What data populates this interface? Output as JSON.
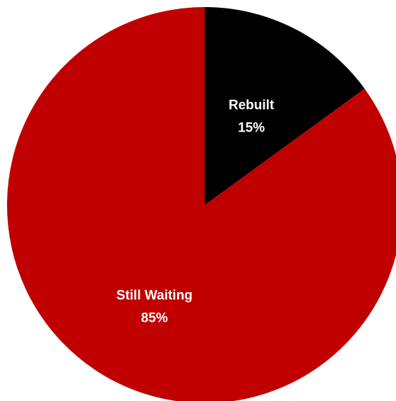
{
  "chart_data": {
    "type": "pie",
    "title": "",
    "start_angle_deg": 0,
    "direction": "clockwise",
    "slices": [
      {
        "label": "Rebuilt",
        "value": 15,
        "value_label": "15%",
        "color": "#000000"
      },
      {
        "label": "Still Waiting",
        "value": 85,
        "value_label": "85%",
        "color": "#C00000"
      }
    ]
  }
}
